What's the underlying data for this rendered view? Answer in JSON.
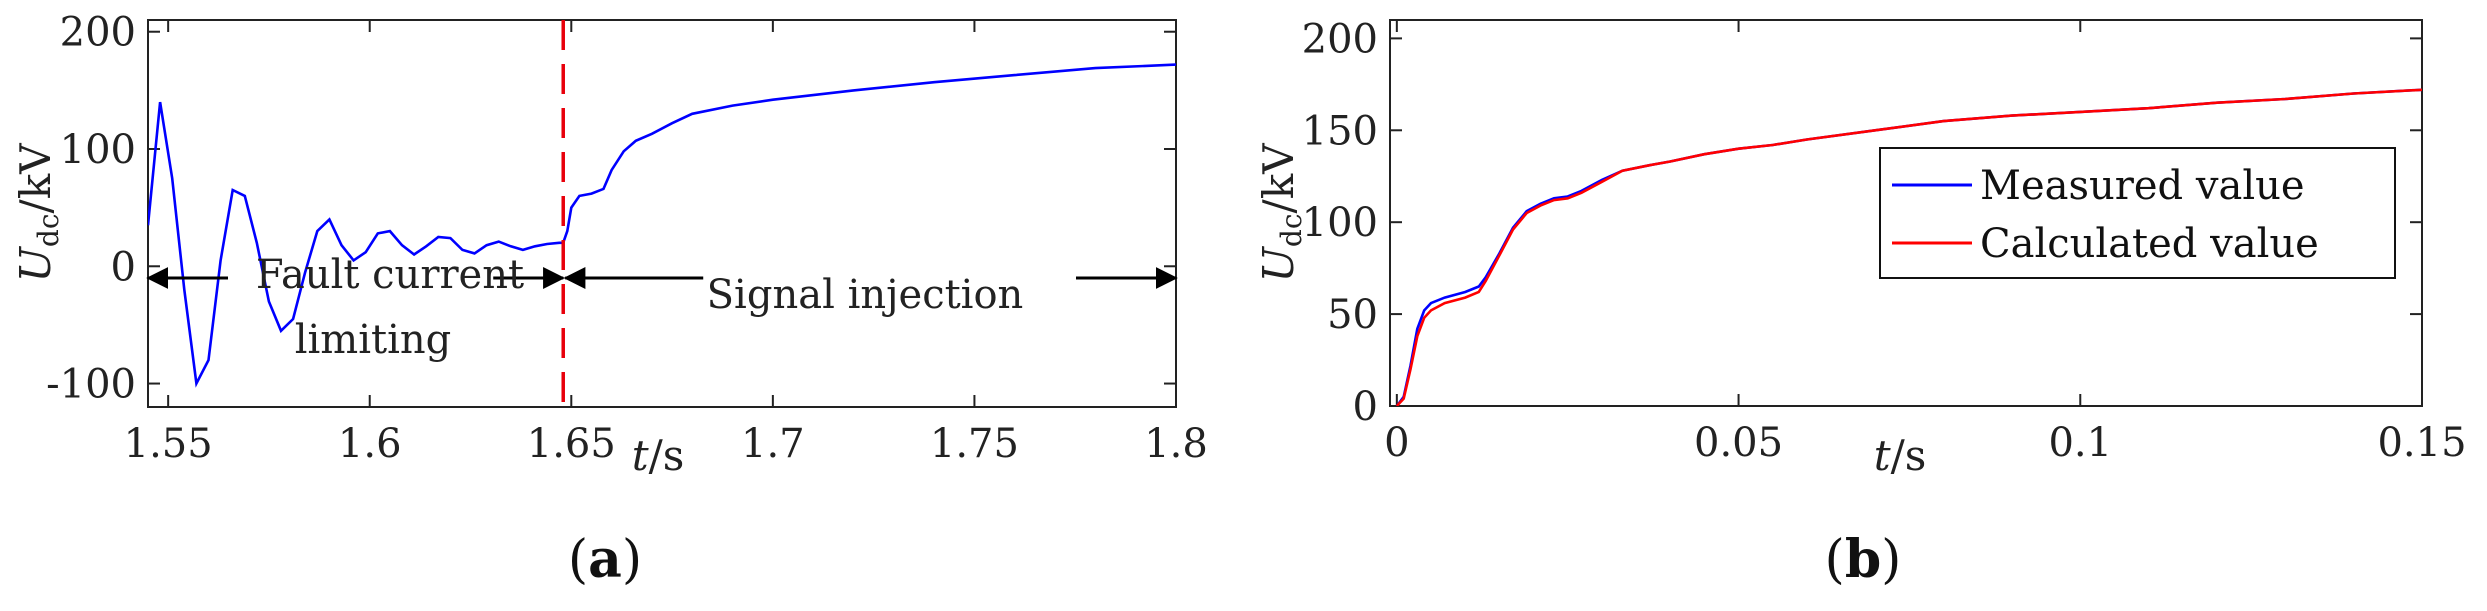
{
  "chart_data": [
    {
      "id": "a",
      "type": "line",
      "panel_label": {
        "open": "(",
        "letter": "a",
        "close": ")"
      },
      "xlabel": {
        "var": "t",
        "unit": "/s"
      },
      "ylabel": {
        "var": "U",
        "sub": "dc",
        "unit": "/kV"
      },
      "xlim": [
        1.545,
        1.8
      ],
      "ylim": [
        -120,
        210
      ],
      "xticks": [
        1.55,
        1.6,
        1.65,
        1.7,
        1.75,
        1.8
      ],
      "xtick_labels": [
        "1.55",
        "1.6",
        "1.65",
        "1.7",
        "1.75",
        "1.8"
      ],
      "yticks": [
        -100,
        0,
        100,
        200
      ],
      "ytick_labels": [
        "-100",
        "0",
        "100",
        "200"
      ],
      "marker_line": {
        "x": 1.648,
        "color": "#e8000b",
        "style": "dashed"
      },
      "annotations": [
        {
          "text1": "Fault current",
          "text2": "limiting",
          "x_from": 1.545,
          "x_to": 1.648,
          "y": -10
        },
        {
          "text1": "Signal injection",
          "x_from": 1.648,
          "x_to": 1.8,
          "y": -10
        }
      ],
      "series": [
        {
          "name": "U_dc",
          "color": "#0000ff",
          "x": [
            1.545,
            1.548,
            1.551,
            1.554,
            1.557,
            1.56,
            1.563,
            1.566,
            1.569,
            1.572,
            1.575,
            1.578,
            1.581,
            1.584,
            1.587,
            1.59,
            1.593,
            1.596,
            1.599,
            1.602,
            1.605,
            1.608,
            1.611,
            1.614,
            1.617,
            1.62,
            1.623,
            1.626,
            1.629,
            1.632,
            1.635,
            1.638,
            1.641,
            1.644,
            1.647,
            1.648,
            1.649,
            1.65,
            1.652,
            1.655,
            1.658,
            1.66,
            1.663,
            1.666,
            1.67,
            1.675,
            1.68,
            1.69,
            1.7,
            1.72,
            1.74,
            1.76,
            1.78,
            1.8
          ],
          "y": [
            35,
            140,
            75,
            -20,
            -100,
            -80,
            5,
            65,
            60,
            20,
            -30,
            -55,
            -45,
            -5,
            30,
            40,
            18,
            5,
            12,
            28,
            30,
            18,
            10,
            17,
            25,
            24,
            14,
            11,
            18,
            21,
            17,
            14,
            17,
            19,
            20,
            20,
            30,
            50,
            60,
            62,
            66,
            82,
            98,
            107,
            113,
            122,
            130,
            137,
            142,
            150,
            157,
            163,
            169,
            172
          ]
        }
      ]
    },
    {
      "id": "b",
      "type": "line",
      "panel_label": {
        "open": "(",
        "letter": "b",
        "close": ")"
      },
      "xlabel": {
        "var": "t",
        "unit": "/s"
      },
      "ylabel": {
        "var": "U",
        "sub": "dc",
        "unit": "/kV"
      },
      "xlim": [
        -0.001,
        0.15
      ],
      "ylim": [
        0,
        210
      ],
      "xticks": [
        0,
        0.05,
        0.1,
        0.15
      ],
      "xtick_labels": [
        "0",
        "0.05",
        "0.1",
        "0.15"
      ],
      "yticks": [
        0,
        50,
        100,
        150,
        200
      ],
      "ytick_labels": [
        "0",
        "50",
        "100",
        "150",
        "200"
      ],
      "legend": {
        "position": "right",
        "entries": [
          "Measured value",
          "Calculated value"
        ]
      },
      "series": [
        {
          "name": "Measured value",
          "color": "#0000ff",
          "x": [
            0,
            0.001,
            0.002,
            0.003,
            0.004,
            0.005,
            0.007,
            0.01,
            0.012,
            0.013,
            0.015,
            0.017,
            0.019,
            0.021,
            0.023,
            0.025,
            0.027,
            0.03,
            0.033,
            0.037,
            0.04,
            0.045,
            0.05,
            0.055,
            0.06,
            0.07,
            0.08,
            0.09,
            0.1,
            0.11,
            0.12,
            0.13,
            0.14,
            0.15
          ],
          "y": [
            0,
            5,
            22,
            42,
            52,
            56,
            59,
            62,
            65,
            70,
            83,
            97,
            106,
            110,
            113,
            114,
            117,
            123,
            128,
            131,
            133,
            137,
            140,
            142,
            145,
            150,
            155,
            158,
            160,
            162,
            165,
            167,
            170,
            172
          ]
        },
        {
          "name": "Calculated value",
          "color": "#ff0000",
          "x": [
            0,
            0.001,
            0.002,
            0.003,
            0.004,
            0.005,
            0.007,
            0.01,
            0.012,
            0.013,
            0.015,
            0.017,
            0.019,
            0.021,
            0.023,
            0.025,
            0.027,
            0.03,
            0.033,
            0.037,
            0.04,
            0.045,
            0.05,
            0.055,
            0.06,
            0.07,
            0.08,
            0.09,
            0.1,
            0.11,
            0.12,
            0.13,
            0.14,
            0.15
          ],
          "y": [
            0,
            4,
            20,
            38,
            48,
            52,
            56,
            59,
            62,
            68,
            82,
            96,
            105,
            109,
            112,
            113,
            116,
            122,
            128,
            131,
            133,
            137,
            140,
            142,
            145,
            150,
            155,
            158,
            160,
            162,
            165,
            167,
            170,
            172
          ]
        }
      ]
    }
  ]
}
